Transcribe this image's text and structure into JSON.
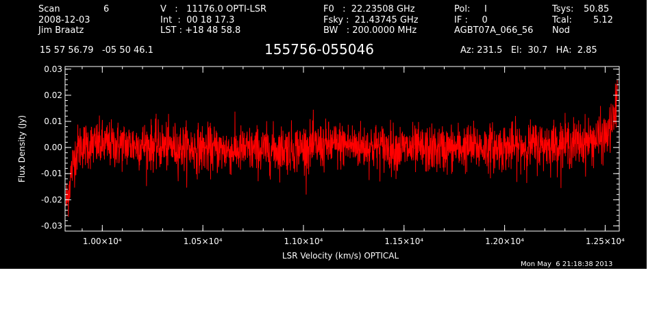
{
  "header": {
    "col1": {
      "scan_label": "Scan",
      "scan_value": "6",
      "date": "2008-12-03",
      "observer": "Jim Braatz"
    },
    "col2": {
      "v_line": "V   :   11176.0 OPTI-LSR",
      "int_line": "Int  :  00 18 17.3",
      "lst_line": "LST : +18 48 58.8"
    },
    "col3": {
      "f0_line": "F0   :  22.23508 GHz",
      "fsky_line": "Fsky :  21.43745 GHz",
      "bw_line": "BW   : 200.0000 MHz"
    },
    "col4": {
      "pol_line": "Pol:     I",
      "if_line": "IF :     0",
      "project": "AGBT07A_066_56"
    },
    "col5": {
      "tsys_label": "Tsys:",
      "tsys_value": "50.85",
      "tcal_label": "Tcal:",
      "tcal_value": "5.12",
      "mode": "Nod"
    },
    "coords": "15 57 56.79   -05 50 46.1",
    "source": "155756-055046",
    "az_el_ha": "Az: 231.5   El:  30.7   HA:  2.85",
    "timestamp": "Mon May  6 21:18:38 2013"
  },
  "colors": {
    "background": "#000000",
    "axes": "#ffffff",
    "trace": "#ff0000"
  },
  "chart_data": {
    "type": "line",
    "title": "155756-055046",
    "xlabel": "LSR Velocity (km/s) OPTICAL",
    "ylabel": "Flux Density (Jy)",
    "xlim": [
      9815,
      12570
    ],
    "ylim": [
      -0.032,
      0.031
    ],
    "x_ticks": [
      {
        "value": 10000,
        "label": "1.00×10⁴"
      },
      {
        "value": 10500,
        "label": "1.05×10⁴"
      },
      {
        "value": 11000,
        "label": "1.10×10⁴"
      },
      {
        "value": 11500,
        "label": "1.15×10⁴"
      },
      {
        "value": 12000,
        "label": "1.20×10⁴"
      },
      {
        "value": 12500,
        "label": "1.25×10⁴"
      }
    ],
    "y_ticks": [
      {
        "value": 0.03,
        "label": "0.03"
      },
      {
        "value": 0.02,
        "label": "0.02"
      },
      {
        "value": 0.01,
        "label": "0.01"
      },
      {
        "value": 0.0,
        "label": "0.00"
      },
      {
        "value": -0.01,
        "label": "-0.01"
      },
      {
        "value": -0.02,
        "label": "-0.02"
      },
      {
        "value": -0.03,
        "label": "-0.03"
      }
    ],
    "grid": false,
    "series": [
      {
        "color": "#ff0000",
        "x_range": [
          9820,
          12560
        ],
        "baseline": 0.0,
        "noise_envelope_jy": [
          -0.014,
          0.014
        ],
        "x": [
          9820,
          9830,
          9845,
          9860,
          9880,
          9900,
          10000,
          10200,
          10400,
          10600,
          10800,
          11000,
          11200,
          11400,
          11600,
          11800,
          12000,
          12200,
          12400,
          12450,
          12500,
          12520,
          12540,
          12555,
          12560
        ],
        "y": [
          -0.021,
          -0.018,
          -0.01,
          -0.004,
          0.0,
          0.001,
          0.001,
          0.001,
          0.0,
          -0.001,
          -0.001,
          0.0,
          0.001,
          0.0,
          -0.001,
          0.0,
          0.0,
          0.001,
          0.002,
          0.003,
          0.004,
          0.006,
          0.01,
          0.016,
          0.022
        ]
      }
    ]
  }
}
